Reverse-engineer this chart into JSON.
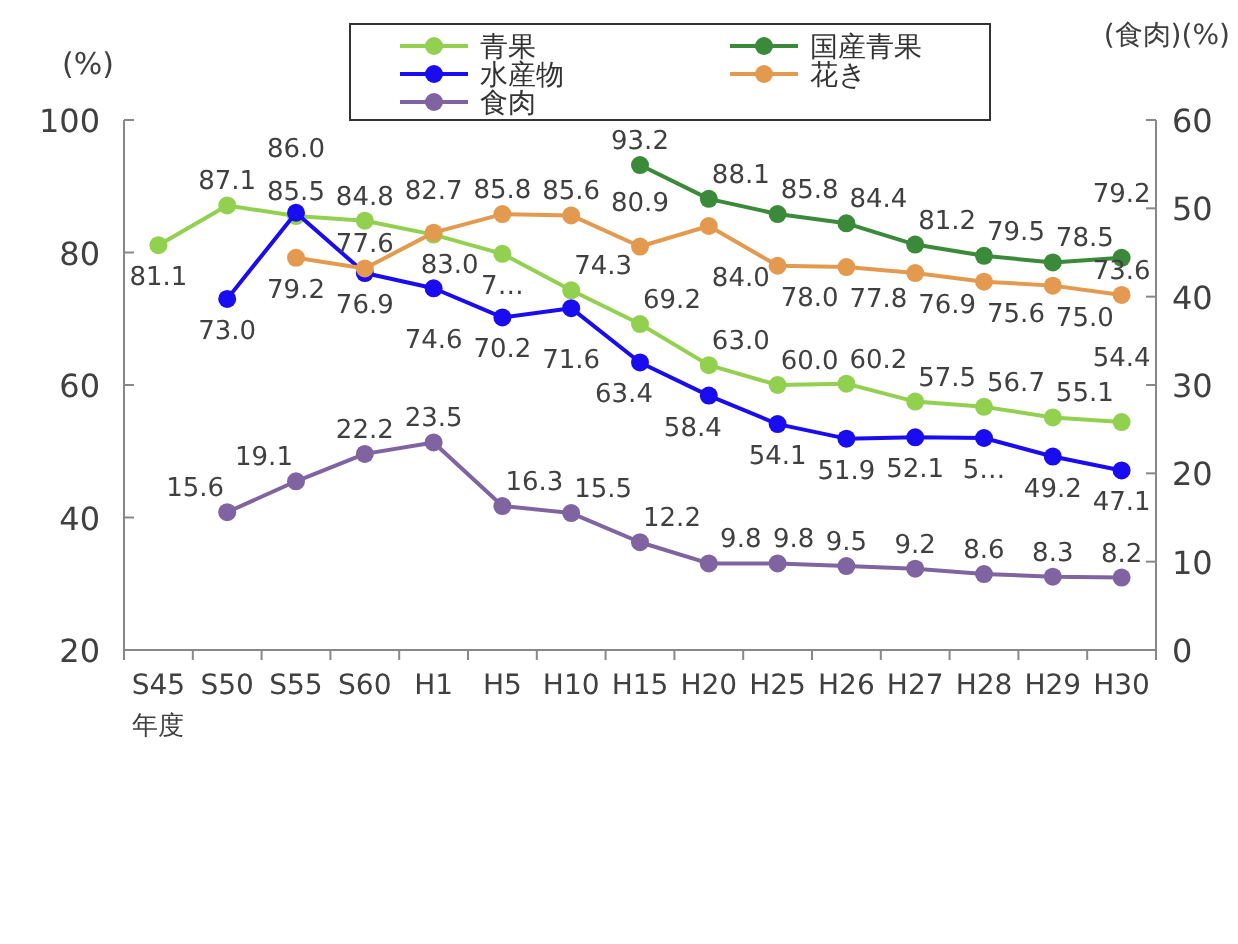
{
  "chart_data": {
    "type": "line",
    "ylabel": "(%)",
    "y2label": "(食肉)(%)",
    "xlabel": "年度",
    "categories": [
      "S45",
      "S50",
      "S55",
      "S60",
      "H1",
      "H5",
      "H10",
      "H15",
      "H20",
      "H25",
      "H26",
      "H27",
      "H28",
      "H29",
      "H30"
    ],
    "ylim": [
      20,
      100
    ],
    "yticks": [
      20,
      40,
      60,
      80,
      100
    ],
    "y2lim": [
      0,
      60
    ],
    "y2ticks": [
      0,
      10,
      20,
      30,
      40,
      50,
      60
    ],
    "legend": "top",
    "marker": "circle",
    "grid": false,
    "data_labels": true,
    "series": [
      {
        "name": "青果",
        "color": "#92d050",
        "values": [
          81.1,
          87.1,
          85.5,
          84.8,
          82.7,
          79.8,
          74.3,
          69.2,
          63.0,
          60.0,
          60.2,
          57.5,
          56.7,
          55.1,
          54.4
        ],
        "value_labels": [
          "81.1",
          "87.1",
          "85.5",
          "84.8",
          "82.7",
          "7…",
          "74.3",
          "69.2",
          "63.0",
          "60.0",
          "60.2",
          "57.5",
          "56.7",
          "55.1",
          "54.4"
        ]
      },
      {
        "name": "国産青果",
        "color": "#3a8a3a",
        "values": [
          null,
          null,
          null,
          null,
          null,
          null,
          null,
          93.2,
          88.1,
          85.8,
          84.4,
          81.2,
          79.5,
          78.5,
          79.2
        ],
        "value_labels": [
          null,
          null,
          null,
          null,
          null,
          null,
          null,
          "93.2",
          "88.1",
          "85.8",
          "84.4",
          "81.2",
          "79.5",
          "78.5",
          "79.2"
        ]
      },
      {
        "name": "水産物",
        "color": "#1a0cf0",
        "values": [
          null,
          73.0,
          86.0,
          76.9,
          74.6,
          70.2,
          71.6,
          63.4,
          58.4,
          54.1,
          51.9,
          52.1,
          52.0,
          49.2,
          47.1
        ],
        "value_labels": [
          null,
          "73.0",
          "86.0",
          "76.9",
          "74.6",
          "70.2",
          "71.6",
          "63.4",
          "58.4",
          "54.1",
          "51.9",
          "52.1",
          "5…",
          "49.2",
          "47.1"
        ]
      },
      {
        "name": "花き",
        "color": "#e39a4f",
        "values": [
          null,
          null,
          79.2,
          77.6,
          83.0,
          85.8,
          85.6,
          80.9,
          84.0,
          78.0,
          77.8,
          76.9,
          75.6,
          75.0,
          73.6
        ],
        "value_labels": [
          null,
          null,
          "79.2",
          "77.6",
          "83.0",
          "85.8",
          "85.6",
          "80.9",
          "84.0",
          "78.0",
          "77.8",
          "76.9",
          "75.6",
          "75.0",
          "73.6"
        ]
      },
      {
        "name": "食肉",
        "color": "#8064a2",
        "axis": "y2",
        "values": [
          null,
          15.6,
          19.1,
          22.2,
          23.5,
          16.3,
          15.5,
          12.2,
          9.8,
          9.8,
          9.5,
          9.2,
          8.6,
          8.3,
          8.2
        ],
        "value_labels": [
          null,
          "15.6",
          "19.1",
          "22.2",
          "23.5",
          "16.3",
          "15.5",
          "12.2",
          "9.8",
          "9.8",
          "9.5",
          "9.2",
          "8.6",
          "8.3",
          "8.2"
        ]
      }
    ]
  }
}
